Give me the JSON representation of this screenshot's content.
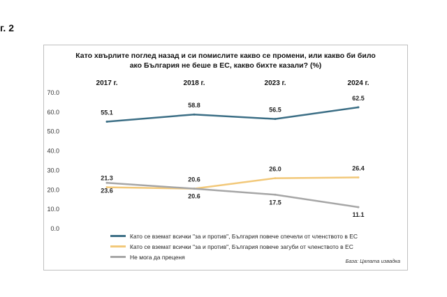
{
  "figure_label": "г. 2",
  "chart_data": {
    "type": "line",
    "title_line1": "Като хвърлите поглед назад и си помислите какво се промени, или какво би било",
    "title_line2": "ако България не беше в ЕС, какво бихте казали? (%)",
    "categories": [
      "2017 г.",
      "2018 г.",
      "2023 г.",
      "2024 г."
    ],
    "ylim": [
      0,
      70
    ],
    "yticks": [
      "0.0",
      "10.0",
      "20.0",
      "30.0",
      "40.0",
      "50.0",
      "60.0",
      "70.0"
    ],
    "series": [
      {
        "name": "Като се вземат всички \"за и против\", България повече спечели от членството в ЕС",
        "values": [
          55.1,
          58.8,
          56.5,
          62.5
        ],
        "labels": [
          "55.1",
          "58.8",
          "56.5",
          "62.5"
        ],
        "color": "#3b6e85"
      },
      {
        "name": "Като се вземат всички \"за и против\", България повече загуби от членството в ЕС",
        "values": [
          21.3,
          20.6,
          26.0,
          26.4
        ],
        "labels": [
          "21.3",
          "20.6",
          "26.0",
          "26.4"
        ],
        "color": "#f2c879"
      },
      {
        "name": "Не мога да преценя",
        "values": [
          23.6,
          20.6,
          17.5,
          11.1
        ],
        "labels": [
          "23.6",
          "20.6",
          "17.5",
          "11.1"
        ],
        "color": "#a6a6a6"
      }
    ],
    "grid": false,
    "legend_position": "bottom"
  },
  "source": "База: Цялата извадка"
}
